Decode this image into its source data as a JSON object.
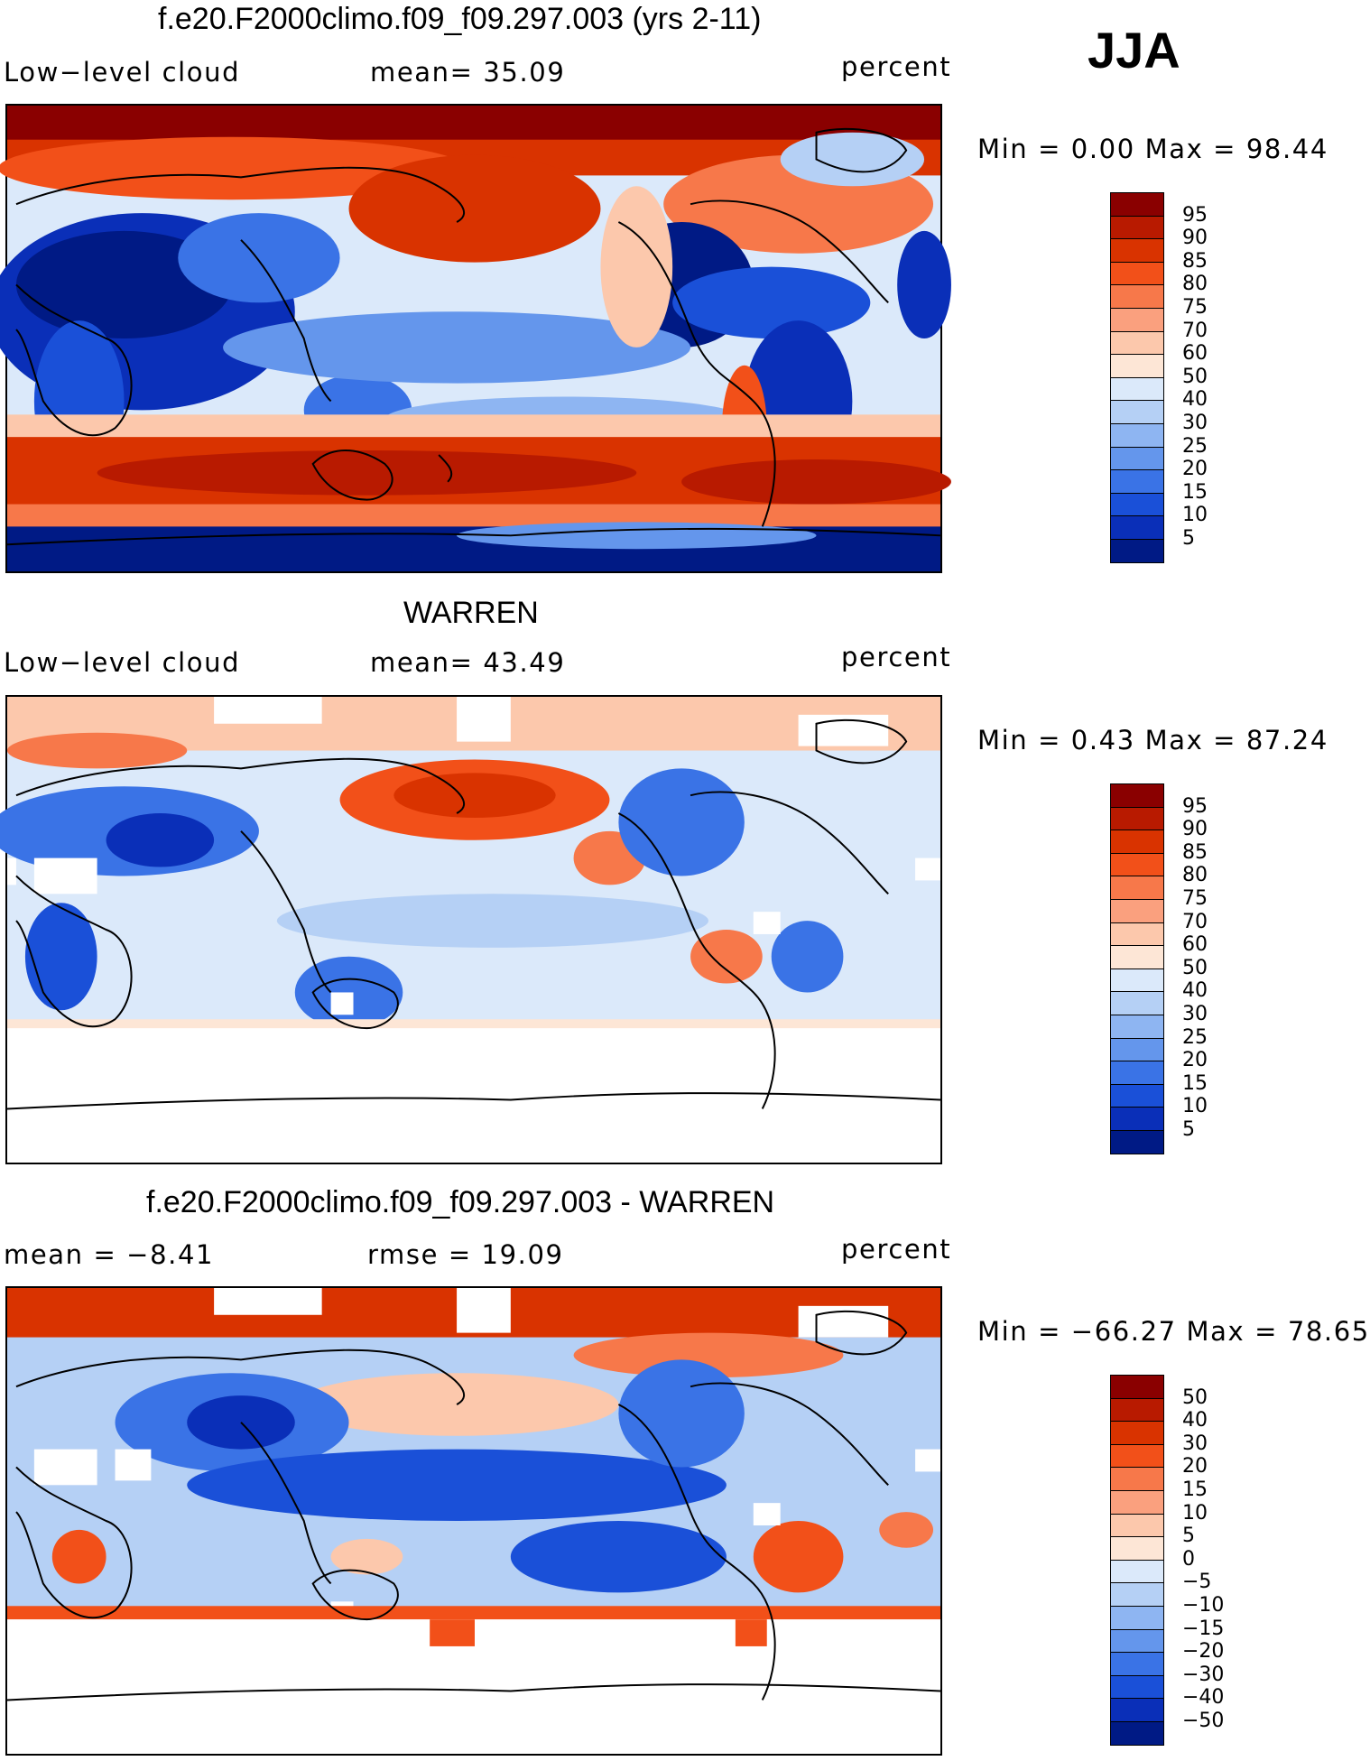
{
  "season": "JJA",
  "panels": [
    {
      "title": "f.e20.F2000climo.f09_f09.297.003 (yrs 2-11)",
      "left_label": "Low−level cloud",
      "mid_label": "mean=   35.09",
      "units": "percent",
      "minmax": "Min =     0.00 Max =    98.44",
      "colorbar": {
        "labels": [
          "95",
          "90",
          "85",
          "80",
          "75",
          "70",
          "60",
          "50",
          "40",
          "30",
          "25",
          "20",
          "15",
          "10",
          "5"
        ],
        "colors": [
          "#8a0000",
          "#b81a00",
          "#d93300",
          "#f25019",
          "#f7784a",
          "#faa07e",
          "#fcc8ac",
          "#fde6d6",
          "#dbe9fa",
          "#b5d0f5",
          "#8eb5f2",
          "#6496ec",
          "#3a73e6",
          "#1a50d8",
          "#0a2fb8",
          "#001a85"
        ]
      }
    },
    {
      "title": "WARREN",
      "left_label": "Low−level cloud",
      "mid_label": "mean=   43.49",
      "units": "percent",
      "minmax": "Min =     0.43 Max =    87.24",
      "colorbar": {
        "labels": [
          "95",
          "90",
          "85",
          "80",
          "75",
          "70",
          "60",
          "50",
          "40",
          "30",
          "25",
          "20",
          "15",
          "10",
          "5"
        ],
        "colors": [
          "#8a0000",
          "#b81a00",
          "#d93300",
          "#f25019",
          "#f7784a",
          "#faa07e",
          "#fcc8ac",
          "#fde6d6",
          "#dbe9fa",
          "#b5d0f5",
          "#8eb5f2",
          "#6496ec",
          "#3a73e6",
          "#1a50d8",
          "#0a2fb8",
          "#001a85"
        ]
      }
    },
    {
      "title": "f.e20.F2000climo.f09_f09.297.003 - WARREN",
      "left_label": "mean =   −8.41",
      "mid_label": "rmse =   19.09",
      "units": "percent",
      "minmax": "Min = −66.27 Max =    78.65",
      "colorbar": {
        "labels": [
          "50",
          "40",
          "30",
          "20",
          "15",
          "10",
          "5",
          "0",
          "−5",
          "−10",
          "−15",
          "−20",
          "−30",
          "−40",
          "−50"
        ],
        "colors": [
          "#8a0000",
          "#b81a00",
          "#d93300",
          "#f25019",
          "#f7784a",
          "#faa07e",
          "#fcc8ac",
          "#fde6d6",
          "#dbe9fa",
          "#b5d0f5",
          "#8eb5f2",
          "#6496ec",
          "#3a73e6",
          "#1a50d8",
          "#0a2fb8",
          "#001a85"
        ]
      }
    }
  ]
}
